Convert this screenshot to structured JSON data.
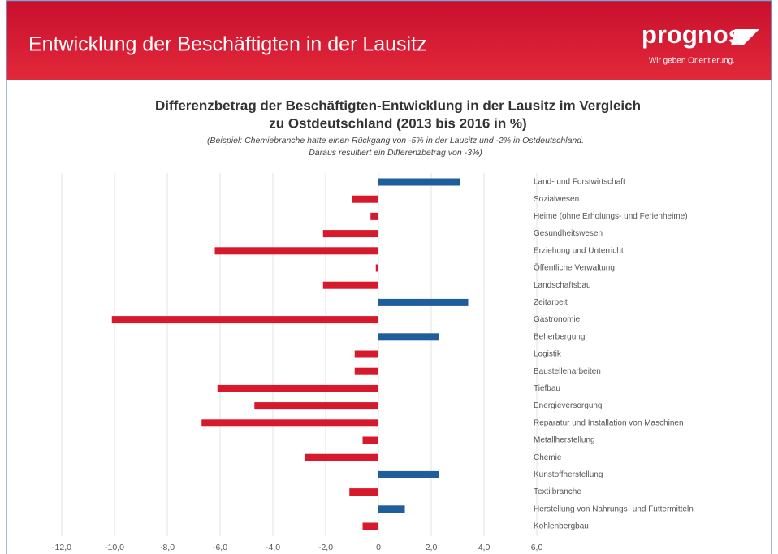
{
  "header": {
    "title": "Entwicklung der Beschäftigten in der Lausitz",
    "logo": "prognos",
    "slogan": "Wir geben Orientierung."
  },
  "chart_data": {
    "type": "hbar",
    "title": [
      "Differenzbetrag der Beschäftigten-Entwicklung in der Lausitz im Vergleich",
      "zu Ostdeutschland (2013 bis 2016 in %)"
    ],
    "subtitle": [
      "(Beispiel: Chemiebranche hatte einen Rückgang von -5% in der Lausitz und -2% in Ostdeutschland.",
      "Daraus resultiert ein Differenzbetrag von -3%)"
    ],
    "categories": [
      "Land- und Forstwirtschaft",
      "Sozialwesen",
      "Heime (ohne Erholungs- und Ferienheime)",
      "Gesundheitswesen",
      "Erziehung und Unterricht",
      "Öffentliche Verwaltung",
      "Landschaftsbau",
      "Zeitarbeit",
      "Gastronomie",
      "Beherbergung",
      "Logistik",
      "Baustellenarbeiten",
      "Tiefbau",
      "Energieversorgung",
      "Reparatur und Installation von Maschinen",
      "Metallherstellung",
      "Chemie",
      "Kunstoffherstellung",
      "Textilbranche",
      "Herstellung von Nahrungs- und Futtermitteln",
      "Kohlenbergbau"
    ],
    "values": [
      3.1,
      -1.0,
      -0.3,
      -2.1,
      -6.2,
      -0.1,
      -2.1,
      3.4,
      -10.1,
      2.3,
      -0.9,
      -0.9,
      -6.1,
      -4.7,
      -6.7,
      -0.6,
      -2.8,
      2.3,
      -1.1,
      1.0,
      -0.6
    ],
    "color_positive": "#1f5e9a",
    "color_negative": "#d7192d",
    "xlim": [
      -12,
      6
    ],
    "xticks": [
      {
        "value": -12,
        "label": "-12,0"
      },
      {
        "value": -10,
        "label": "-10,0"
      },
      {
        "value": -8,
        "label": "-8,0"
      },
      {
        "value": -6,
        "label": "-6,0"
      },
      {
        "value": -4,
        "label": "-4,0"
      },
      {
        "value": -2,
        "label": "-2,0"
      },
      0,
      {
        "value": 2,
        "label": "2,0"
      },
      {
        "value": 4,
        "label": "4,0"
      },
      {
        "value": 6,
        "label": "6,0"
      }
    ],
    "grid": true
  }
}
